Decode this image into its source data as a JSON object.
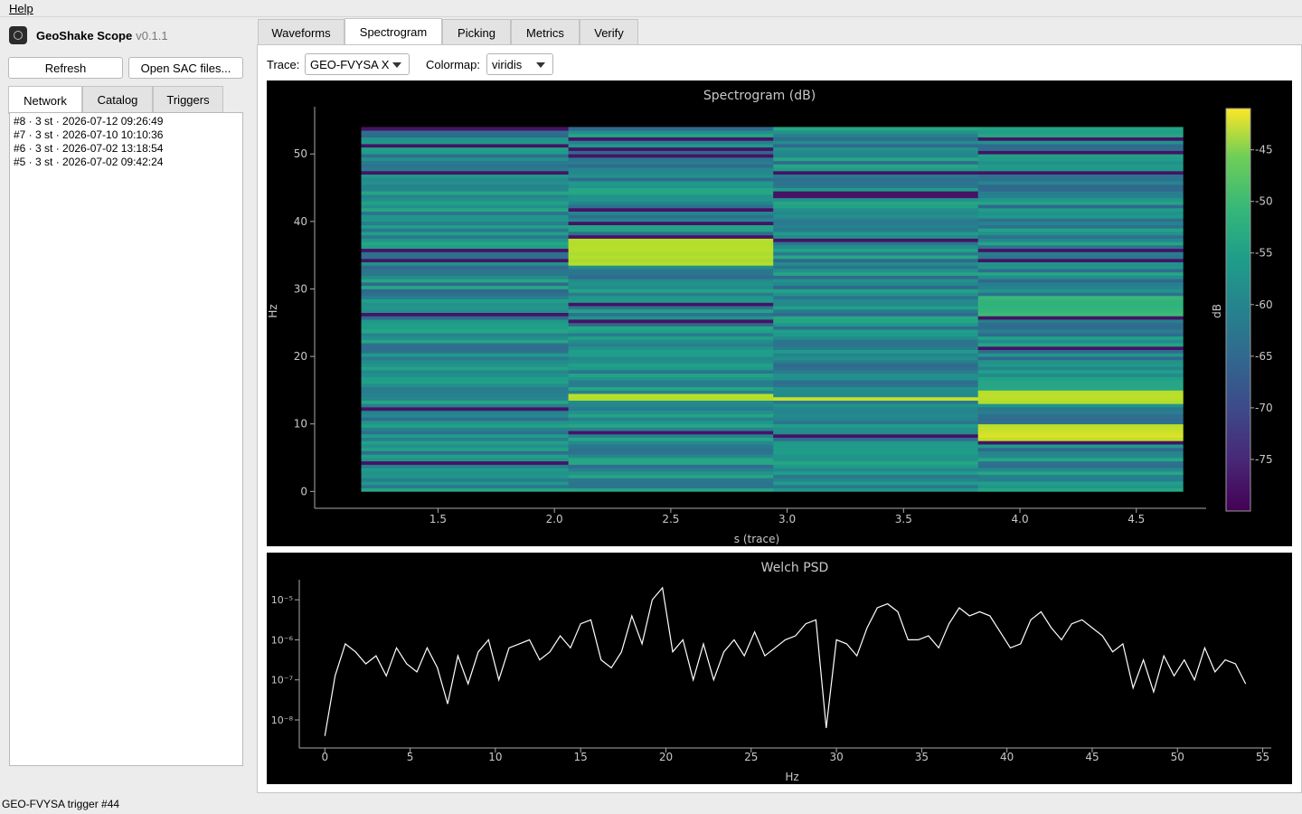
{
  "menubar": {
    "help": "Help"
  },
  "app": {
    "title": "GeoShake Scope",
    "version": "v0.1.1"
  },
  "toolbar": {
    "refresh": "Refresh",
    "open_sac": "Open SAC files..."
  },
  "left_tabs": [
    {
      "label": "Network",
      "active": true
    },
    {
      "label": "Catalog",
      "active": false
    },
    {
      "label": "Triggers",
      "active": false
    }
  ],
  "events": [
    "#8 · 3 st · 2026-07-12 09:26:49",
    "#7 · 3 st · 2026-07-10 10:10:36",
    "#6 · 3 st · 2026-07-02 13:18:54",
    "#5 · 3 st · 2026-07-02 09:42:24"
  ],
  "status": "GEO-FVYSA trigger #44",
  "main_tabs": [
    {
      "label": "Waveforms",
      "active": false
    },
    {
      "label": "Spectrogram",
      "active": true
    },
    {
      "label": "Picking",
      "active": false
    },
    {
      "label": "Metrics",
      "active": false
    },
    {
      "label": "Verify",
      "active": false
    }
  ],
  "controls": {
    "trace_label": "Trace:",
    "trace_value": "GEO-FVYSA X",
    "colormap_label": "Colormap:",
    "colormap_value": "viridis"
  },
  "chart_data": [
    {
      "type": "heatmap",
      "title": "Spectrogram (dB)",
      "xlabel": "s (trace)",
      "ylabel": "Hz",
      "colorbar_label": "dB",
      "colormap": "viridis",
      "xlim": [
        0.97,
        4.8
      ],
      "ylim": [
        -2.5,
        57
      ],
      "xticks": [
        1.5,
        2.0,
        2.5,
        3.0,
        3.5,
        4.0,
        4.5
      ],
      "yticks": [
        0,
        10,
        20,
        30,
        40,
        50
      ],
      "clim": [
        -80,
        -41
      ],
      "cticks": [
        -45,
        -50,
        -55,
        -60,
        -65,
        -70,
        -75
      ],
      "time_bins": [
        1.17,
        2.06,
        2.94,
        3.82,
        4.7
      ],
      "freq_range": [
        0,
        54
      ],
      "hot_bands": [
        {
          "t_index": 1,
          "f_from": 33.5,
          "f_to": 37.5,
          "db": -47
        },
        {
          "t_index": 1,
          "f_from": 13.3,
          "f_to": 14.3,
          "db": -47
        },
        {
          "t_index": 2,
          "f_from": 13.6,
          "f_to": 14.0,
          "db": -46
        },
        {
          "t_index": 3,
          "f_from": 13.0,
          "f_to": 15.0,
          "db": -46
        },
        {
          "t_index": 3,
          "f_from": 7.5,
          "f_to": 10.0,
          "db": -45
        },
        {
          "t_index": 3,
          "f_from": 26.0,
          "f_to": 29.0,
          "db": -55
        }
      ]
    },
    {
      "type": "line",
      "title": "Welch PSD",
      "xlabel": "Hz",
      "ylabel": "",
      "yscale": "log",
      "xlim": [
        -1.5,
        55.5
      ],
      "ylim_log10": [
        -8.7,
        -4.5
      ],
      "xticks": [
        0,
        5,
        10,
        15,
        20,
        25,
        30,
        35,
        40,
        45,
        50,
        55
      ],
      "yticks": [
        "10⁻⁵",
        "10⁻⁶",
        "10⁻⁷",
        "10⁻⁸"
      ],
      "x": [
        0,
        0.6,
        1.2,
        1.8,
        2.4,
        3.0,
        3.6,
        4.2,
        4.8,
        5.4,
        6.0,
        6.6,
        7.2,
        7.8,
        8.4,
        9.0,
        9.6,
        10.2,
        10.8,
        11.4,
        12.0,
        12.6,
        13.2,
        13.8,
        14.4,
        15.0,
        15.6,
        16.2,
        16.8,
        17.4,
        18.0,
        18.6,
        19.2,
        19.8,
        20.4,
        21.0,
        21.6,
        22.2,
        22.8,
        23.4,
        24.0,
        24.6,
        25.2,
        25.8,
        26.4,
        27.0,
        27.6,
        28.2,
        28.8,
        29.4,
        30.0,
        30.6,
        31.2,
        31.8,
        32.4,
        33.0,
        33.6,
        34.2,
        34.8,
        35.4,
        36.0,
        36.6,
        37.2,
        37.8,
        38.4,
        39.0,
        39.6,
        40.2,
        40.8,
        41.4,
        42.0,
        42.6,
        43.2,
        43.8,
        44.4,
        45.0,
        45.6,
        46.2,
        46.8,
        47.4,
        48.0,
        48.6,
        49.2,
        49.8,
        50.4,
        51.0,
        51.6,
        52.2,
        52.8,
        53.4,
        54.0
      ],
      "y_log10": [
        -8.4,
        -6.9,
        -6.1,
        -6.3,
        -6.6,
        -6.4,
        -6.9,
        -6.2,
        -6.6,
        -6.8,
        -6.2,
        -6.7,
        -7.6,
        -6.4,
        -7.1,
        -6.3,
        -6.0,
        -7.0,
        -6.2,
        -6.1,
        -6.0,
        -6.5,
        -6.3,
        -5.9,
        -6.2,
        -5.6,
        -5.5,
        -6.5,
        -6.7,
        -6.3,
        -5.4,
        -6.1,
        -5.0,
        -4.7,
        -6.3,
        -6.0,
        -7.0,
        -6.1,
        -7.0,
        -6.3,
        -6.0,
        -6.4,
        -5.8,
        -6.4,
        -6.2,
        -6.0,
        -5.9,
        -5.6,
        -5.5,
        -8.2,
        -6.0,
        -6.1,
        -6.4,
        -5.7,
        -5.2,
        -5.1,
        -5.3,
        -6.0,
        -6.0,
        -5.9,
        -6.2,
        -5.6,
        -5.2,
        -5.4,
        -5.3,
        -5.4,
        -5.8,
        -6.2,
        -6.1,
        -5.5,
        -5.3,
        -5.7,
        -6.0,
        -5.6,
        -5.5,
        -5.7,
        -5.9,
        -6.3,
        -6.1,
        -7.2,
        -6.5,
        -7.3,
        -6.4,
        -6.9,
        -6.5,
        -7.0,
        -6.2,
        -6.8,
        -6.5,
        -6.6,
        -7.1
      ]
    }
  ]
}
